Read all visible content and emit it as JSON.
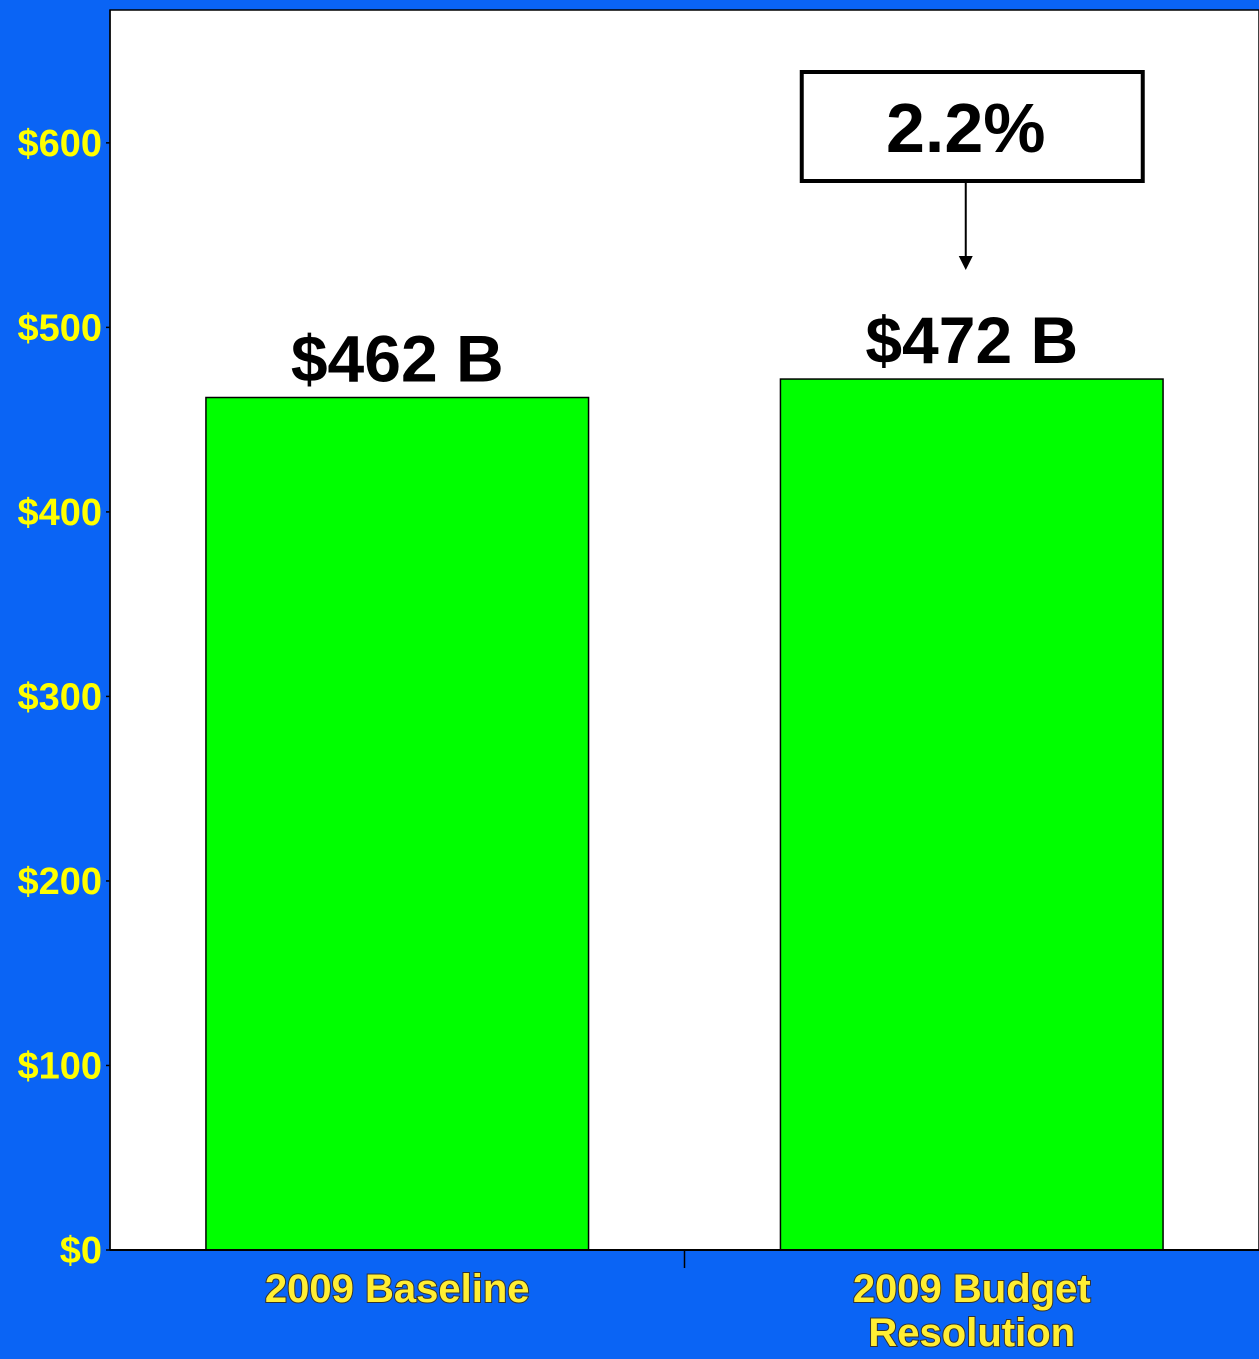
{
  "chart_data": {
    "type": "bar",
    "categories": [
      "2009 Baseline",
      "2009 Budget Resolution"
    ],
    "values": [
      462,
      472
    ],
    "value_labels": [
      "$462 B",
      "$472 B"
    ],
    "color": "#00ff00",
    "ylim": [
      0,
      672
    ],
    "yticks": [
      {
        "value": 0,
        "label": "$0"
      },
      {
        "value": 100,
        "label": "$100"
      },
      {
        "value": 200,
        "label": "$200"
      },
      {
        "value": 300,
        "label": "$300"
      },
      {
        "value": 400,
        "label": "$400"
      },
      {
        "value": 500,
        "label": "$500"
      },
      {
        "value": 600,
        "label": "$600"
      }
    ],
    "annotations": [
      {
        "text": "2.2%"
      }
    ]
  }
}
